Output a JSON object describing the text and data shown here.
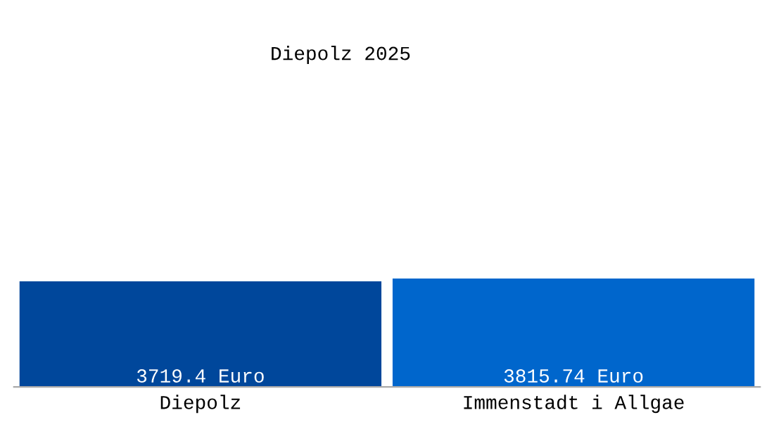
{
  "chart_data": {
    "type": "bar",
    "title": "Diepolz 2025",
    "categories": [
      "Diepolz",
      "Immenstadt i Allgae"
    ],
    "values": [
      3719.4,
      3815.74
    ],
    "colors": [
      "#00479b",
      "#0066cc"
    ],
    "value_labels": [
      "3719.4 Euro",
      "3815.74 Euro"
    ],
    "tick_labels": "x",
    "grid": false,
    "legend": false
  }
}
